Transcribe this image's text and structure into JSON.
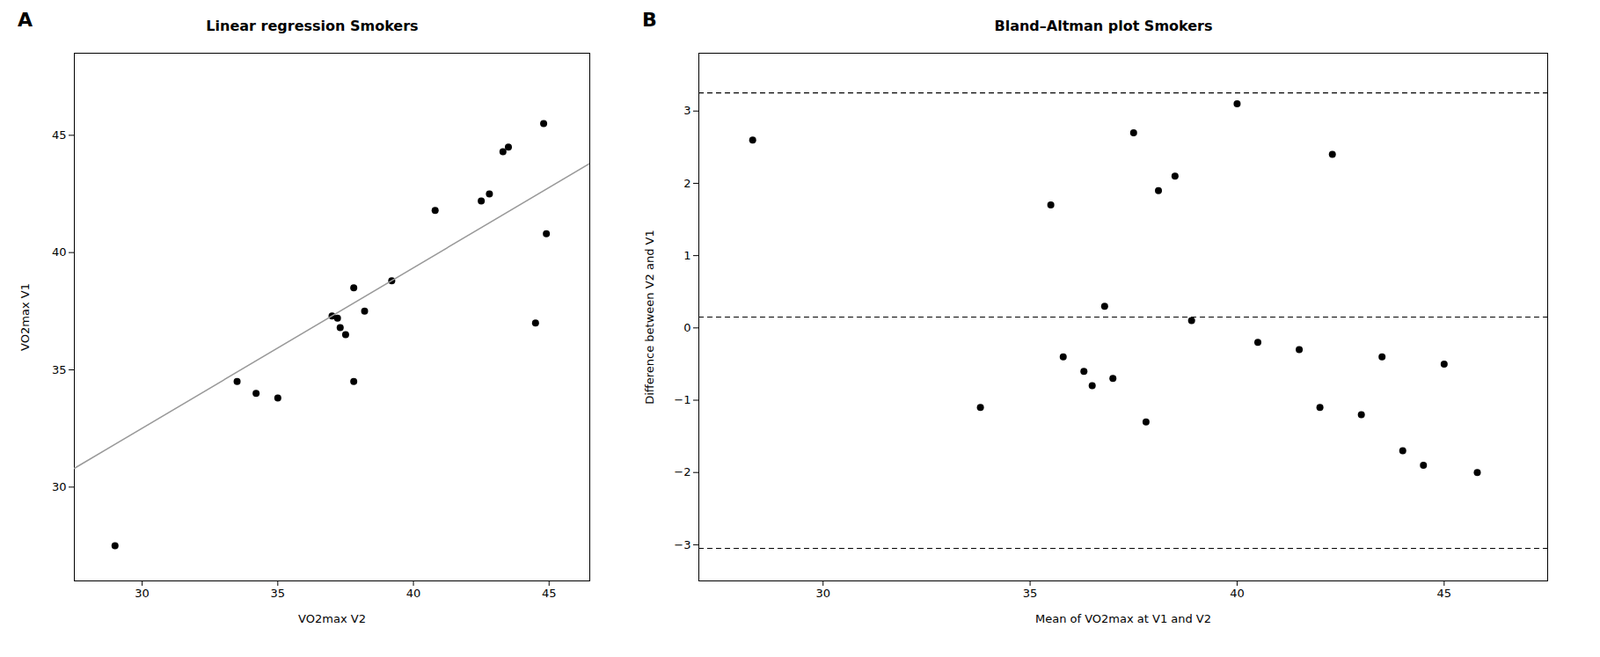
{
  "chart_data": [
    {
      "type": "scatter",
      "title": "Linear regression Smokers",
      "annotations": [
        "A"
      ],
      "xlabel": "VO2max V2",
      "ylabel": "VO2max V1",
      "xlim": [
        27.5,
        46.5
      ],
      "ylim": [
        26.0,
        48.5
      ],
      "xticks": [
        30,
        35,
        40,
        45
      ],
      "yticks": [
        30,
        35,
        40,
        45
      ],
      "series": [
        {
          "type": "scatter",
          "color": "#000000",
          "x": [
            29.0,
            33.5,
            34.2,
            35.0,
            37.0,
            37.2,
            37.3,
            37.5,
            37.8,
            38.2,
            37.8,
            39.2,
            40.8,
            42.5,
            42.8,
            43.3,
            43.5,
            44.5,
            44.8,
            44.9
          ],
          "values": [
            27.5,
            34.5,
            34.0,
            33.8,
            37.3,
            37.2,
            36.8,
            36.5,
            38.5,
            37.5,
            34.5,
            38.8,
            41.8,
            42.2,
            42.5,
            44.3,
            44.5,
            37.0,
            45.5,
            40.8
          ]
        },
        {
          "type": "line",
          "color": "#999999",
          "line_style": "solid",
          "x": [
            27.5,
            46.5
          ],
          "values": [
            30.8,
            43.8
          ]
        }
      ]
    },
    {
      "type": "scatter",
      "title": "Bland–Altman plot Smokers",
      "annotations": [
        "B"
      ],
      "xlabel": "Mean of VO2max at V1 and V2",
      "ylabel": "Difference between V2 and V1",
      "xlim": [
        27.0,
        47.5
      ],
      "ylim": [
        -3.5,
        3.8
      ],
      "xticks": [
        30,
        35,
        40,
        45
      ],
      "yticks": [
        -3,
        -2,
        -1,
        0,
        1,
        2,
        3
      ],
      "series": [
        {
          "type": "scatter",
          "color": "#000000",
          "x": [
            28.3,
            33.8,
            35.5,
            35.8,
            36.3,
            36.5,
            36.8,
            37.0,
            37.5,
            37.8,
            38.1,
            38.5,
            38.9,
            40.0,
            40.5,
            41.5,
            42.0,
            42.3,
            43.0,
            43.5,
            44.0,
            44.5,
            45.0,
            45.8
          ],
          "values": [
            2.6,
            -1.1,
            1.7,
            -0.4,
            -0.6,
            -0.8,
            0.3,
            -0.7,
            2.7,
            -1.3,
            1.9,
            2.1,
            0.1,
            3.1,
            -0.2,
            -0.3,
            -1.1,
            2.4,
            -1.2,
            -0.4,
            -1.7,
            -1.9,
            -0.5,
            -2.0
          ]
        },
        {
          "type": "hline",
          "color": "#000000",
          "line_style": "dashed",
          "values": [
            0.15
          ]
        },
        {
          "type": "hline",
          "color": "#000000",
          "line_style": "dashed",
          "values": [
            3.25
          ]
        },
        {
          "type": "hline",
          "color": "#000000",
          "line_style": "dashed",
          "values": [
            -3.05
          ]
        }
      ]
    }
  ]
}
